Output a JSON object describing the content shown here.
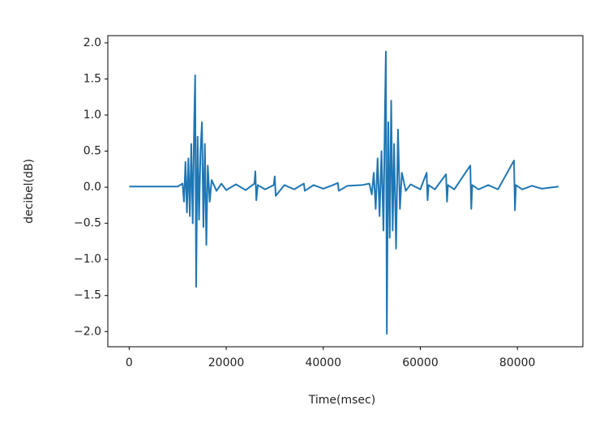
{
  "chart_data": {
    "type": "line",
    "xlabel": "Time(msec)",
    "ylabel": "decibel(dB)",
    "x": [
      0,
      5000,
      10000,
      11000,
      11300,
      11600,
      11900,
      12200,
      12500,
      12800,
      13100,
      13400,
      13600,
      13800,
      14100,
      14400,
      14700,
      15000,
      15300,
      15600,
      15900,
      16200,
      16600,
      17000,
      18000,
      19000,
      20000,
      22000,
      24000,
      25800,
      26000,
      26200,
      26500,
      28000,
      29800,
      30000,
      30200,
      32000,
      34000,
      36000,
      36200,
      38000,
      40000,
      42000,
      43000,
      43200,
      45000,
      48000,
      49500,
      50000,
      50400,
      50800,
      51200,
      51600,
      52000,
      52400,
      52700,
      52900,
      53100,
      53400,
      53700,
      54000,
      54300,
      54600,
      55000,
      55400,
      55800,
      56200,
      57000,
      58000,
      60000,
      61300,
      61500,
      61700,
      63000,
      65300,
      65500,
      65700,
      67000,
      70300,
      70500,
      70700,
      72000,
      74000,
      76000,
      79300,
      79500,
      79700,
      81000,
      83000,
      85000,
      88500
    ],
    "series": [
      {
        "color": "#1f77b4",
        "values": [
          0.01,
          0.01,
          0.01,
          0.05,
          -0.2,
          0.35,
          -0.35,
          0.4,
          -0.4,
          0.6,
          -0.5,
          0.9,
          1.55,
          -1.38,
          0.7,
          -0.45,
          0.5,
          0.9,
          -0.55,
          0.6,
          -0.8,
          0.3,
          -0.2,
          0.1,
          -0.05,
          0.05,
          -0.04,
          0.04,
          -0.04,
          0.05,
          0.22,
          -0.18,
          0.03,
          -0.03,
          0.03,
          0.15,
          -0.12,
          0.03,
          -0.03,
          0.05,
          -0.05,
          0.03,
          -0.02,
          0.03,
          0.06,
          -0.05,
          0.02,
          0.03,
          0.05,
          -0.1,
          0.2,
          -0.3,
          0.4,
          -0.4,
          0.5,
          -0.6,
          1.0,
          1.88,
          -2.03,
          0.9,
          -0.7,
          1.2,
          -0.6,
          0.6,
          -0.85,
          0.8,
          -0.3,
          0.2,
          -0.05,
          0.04,
          -0.03,
          0.2,
          -0.18,
          0.03,
          -0.03,
          0.18,
          -0.2,
          0.03,
          -0.03,
          0.3,
          -0.3,
          0.03,
          -0.03,
          0.03,
          -0.03,
          0.37,
          -0.32,
          0.03,
          -0.03,
          0.02,
          -0.02,
          0.01
        ]
      }
    ],
    "xlim": [
      -4400,
      93500
    ],
    "xticks": [
      0,
      20000,
      40000,
      60000,
      80000
    ],
    "ylim": [
      -2.21,
      2.1
    ],
    "yticks": [
      {
        "value": -2,
        "label": "−2.0"
      },
      {
        "value": -1.5,
        "label": "−1.5"
      },
      {
        "value": -1,
        "label": "−1.0"
      },
      {
        "value": -0.5,
        "label": "−0.5"
      },
      {
        "value": 0,
        "label": "0.0"
      },
      {
        "value": 0.5,
        "label": "0.5"
      },
      {
        "value": 1,
        "label": "1.0"
      },
      {
        "value": 1.5,
        "label": "1.5"
      },
      {
        "value": 2,
        "label": "2.0"
      }
    ],
    "grid": false
  }
}
